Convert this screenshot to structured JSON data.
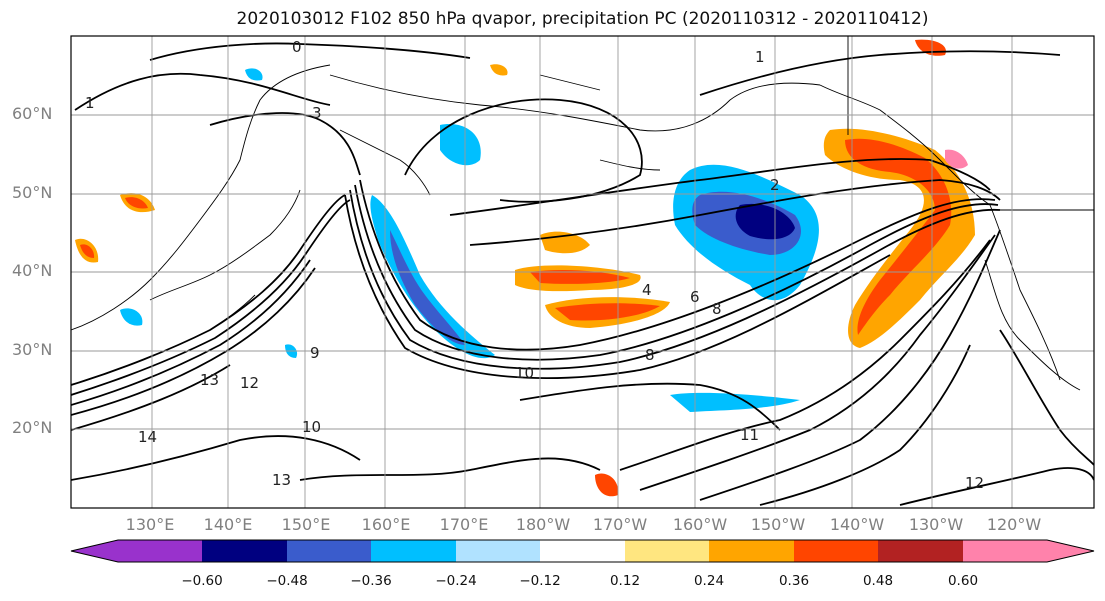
{
  "title": "2020103012 F102 850 hPa qvapor, precipitation PC (2020110312 - 2020110412)",
  "lat_labels": [
    "60°N",
    "50°N",
    "40°N",
    "30°N",
    "20°N"
  ],
  "lon_labels": [
    "130°E",
    "140°E",
    "150°E",
    "160°E",
    "170°E",
    "180°W",
    "170°W",
    "160°W",
    "150°W",
    "140°W",
    "130°W",
    "120°W"
  ],
  "colorbar": {
    "tick_labels": [
      "−0.60",
      "−0.48",
      "−0.36",
      "−0.24",
      "−0.12",
      "0.12",
      "0.24",
      "0.36",
      "0.48",
      "0.60"
    ],
    "colors": [
      "#9932cc",
      "#000080",
      "#3a5ccc",
      "#00bfff",
      "#b0e2ff",
      "#ffffff",
      "#ffe680",
      "#ffa500",
      "#ff4500",
      "#b22222",
      "#ff82ab"
    ]
  },
  "contour_labels": [
    "0",
    "1",
    "1",
    "2",
    "3",
    "4",
    "6",
    "8",
    "8",
    "9",
    "10",
    "10",
    "11",
    "12",
    "12",
    "13",
    "13",
    "14"
  ],
  "colors": {
    "axis_text": "#808080",
    "grid": "#9a9a9a",
    "contour": "#000000",
    "frame": "#000000"
  }
}
